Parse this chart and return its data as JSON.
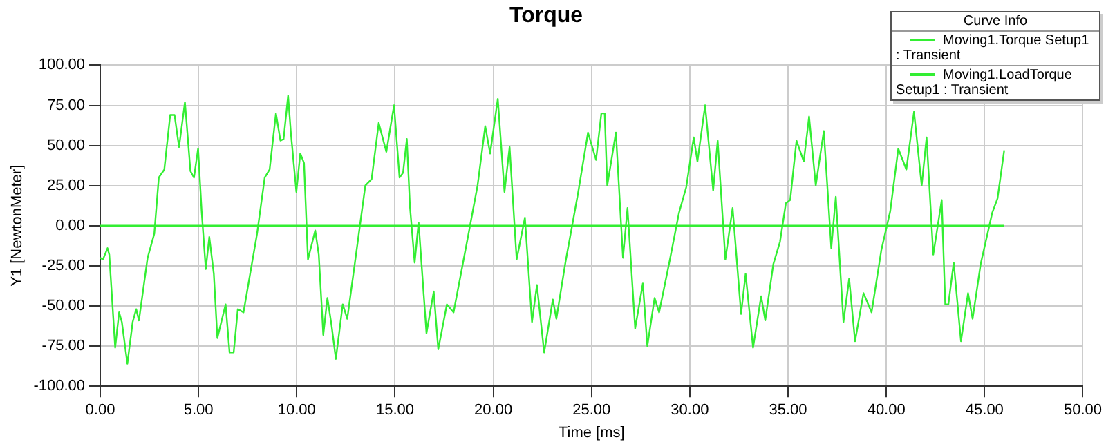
{
  "chart_data": {
    "type": "line",
    "title": "Torque",
    "xlabel": "Time [ms]",
    "ylabel": "Y1 [NewtonMeter]",
    "legend_title": "Curve Info",
    "xlim": [
      0,
      50
    ],
    "xticks": [
      {
        "value": 0,
        "label": "0.00"
      },
      {
        "value": 5,
        "label": "5.00"
      },
      {
        "value": 10,
        "label": "10.00"
      },
      {
        "value": 15,
        "label": "15.00"
      },
      {
        "value": 20,
        "label": "20.00"
      },
      {
        "value": 25,
        "label": "25.00"
      },
      {
        "value": 30,
        "label": "30.00"
      },
      {
        "value": 35,
        "label": "35.00"
      },
      {
        "value": 40,
        "label": "40.00"
      },
      {
        "value": 45,
        "label": "45.00"
      },
      {
        "value": 50,
        "label": "50.00"
      }
    ],
    "ylim": [
      -100,
      100
    ],
    "yticks": [
      {
        "value": -100,
        "label": "-100.00"
      },
      {
        "value": -75,
        "label": "-75.00"
      },
      {
        "value": -50,
        "label": "-50.00"
      },
      {
        "value": -25,
        "label": "-25.00"
      },
      {
        "value": 0,
        "label": "0.00"
      },
      {
        "value": 25,
        "label": "25.00"
      },
      {
        "value": 50,
        "label": "50.00"
      },
      {
        "value": 75,
        "label": "75.00"
      },
      {
        "value": 100,
        "label": "100.00"
      }
    ],
    "grid": true,
    "legend": "top right",
    "marker": "none",
    "line_style": "solid",
    "series": [
      {
        "name": "Moving1.Torque Setup1 : Transient",
        "color": "#33ee33",
        "x": [
          0,
          0.14,
          0.37,
          0.46,
          0.76,
          0.96,
          1.1,
          1.38,
          1.65,
          1.83,
          1.97,
          2.41,
          2.75,
          2.98,
          3.26,
          3.56,
          3.78,
          4.01,
          4.31,
          4.59,
          4.77,
          4.98,
          5.16,
          5.37,
          5.55,
          5.78,
          5.96,
          6.38,
          6.58,
          6.79,
          7.0,
          7.29,
          7.98,
          8.37,
          8.62,
          8.94,
          9.17,
          9.33,
          9.56,
          9.7,
          9.98,
          10.18,
          10.37,
          10.57,
          10.94,
          11.12,
          11.35,
          11.56,
          11.77,
          11.99,
          12.34,
          12.57,
          12.96,
          13.49,
          13.81,
          14.17,
          14.56,
          14.95,
          15.23,
          15.41,
          15.6,
          15.76,
          16.0,
          16.2,
          16.6,
          16.97,
          17.2,
          17.64,
          17.98,
          18.74,
          19.2,
          19.59,
          19.84,
          20.23,
          20.57,
          20.83,
          21.19,
          21.61,
          21.97,
          22.22,
          22.59,
          23.03,
          23.21,
          23.67,
          24.31,
          24.82,
          25.23,
          25.5,
          25.67,
          25.8,
          26.24,
          26.6,
          26.83,
          27.22,
          27.61,
          27.84,
          28.21,
          28.44,
          28.99,
          29.45,
          29.82,
          30.2,
          30.39,
          30.78,
          31.19,
          31.42,
          31.81,
          32.18,
          32.61,
          32.84,
          33.22,
          33.63,
          33.84,
          34.25,
          34.59,
          34.89,
          35.11,
          35.43,
          35.8,
          36.07,
          36.41,
          36.82,
          37.2,
          37.43,
          37.82,
          38.11,
          38.41,
          38.84,
          39.25,
          39.75,
          40.2,
          40.61,
          41.02,
          41.41,
          41.8,
          42.05,
          42.39,
          42.82,
          43.0,
          43.16,
          43.43,
          43.8,
          44.16,
          44.39,
          44.8,
          45.39,
          45.66,
          46.0
        ],
        "values": [
          -20,
          -21,
          -14,
          -18,
          -76,
          -54,
          -60,
          -86,
          -60,
          -52,
          -59,
          -20,
          -5,
          30,
          35,
          69,
          69,
          49,
          77,
          34,
          30,
          48,
          9,
          -27,
          -7,
          -30,
          -70,
          -49,
          -79,
          -79,
          -52,
          -54,
          -5,
          30,
          35,
          70,
          53,
          54,
          81,
          58,
          21,
          45,
          39,
          -21,
          -3,
          -18,
          -68,
          -45,
          -62,
          -83,
          -49,
          -58,
          -23,
          25,
          29,
          64,
          46,
          75,
          30,
          33,
          54,
          12,
          -23,
          2,
          -67,
          -41,
          -77,
          -49,
          -54,
          -5,
          25,
          62,
          45,
          79,
          21,
          49,
          -21,
          5,
          -60,
          -37,
          -79,
          -46,
          -58,
          -23,
          20,
          58,
          41,
          70,
          70,
          25,
          58,
          -20,
          11,
          -64,
          -36,
          -75,
          -45,
          -54,
          -21,
          8,
          24,
          55,
          40,
          75,
          22,
          53,
          -21,
          11,
          -55,
          -30,
          -76,
          -44,
          -59,
          -24,
          -10,
          14,
          16,
          53,
          40,
          68,
          25,
          59,
          -14,
          18,
          -60,
          -33,
          -72,
          -42,
          -54,
          -15,
          9,
          48,
          35,
          71,
          25,
          55,
          -18,
          16,
          -49,
          -49,
          -23,
          -72,
          -42,
          -58,
          -24,
          8,
          17,
          47
        ]
      },
      {
        "name": "Moving1.LoadTorque Setup1 : Transient",
        "color": "#33ee33",
        "x": [
          0,
          46
        ],
        "values": [
          0,
          0
        ]
      }
    ]
  }
}
